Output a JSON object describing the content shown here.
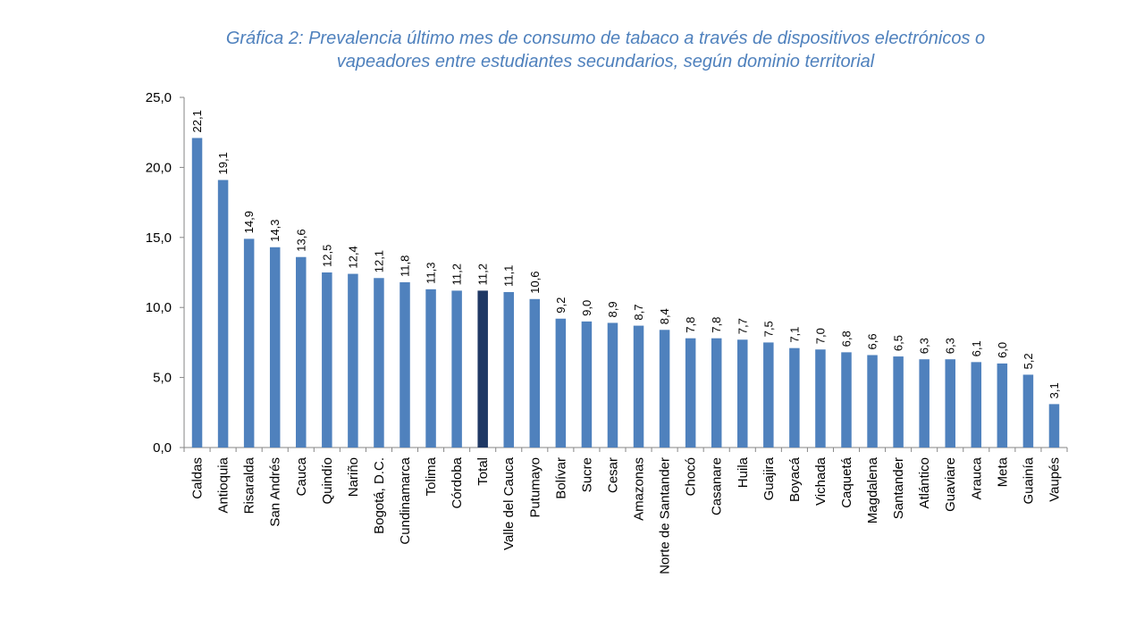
{
  "chart_data": {
    "type": "bar",
    "title_lines": [
      "Gráfica 2: Prevalencia último mes de consumo de tabaco a través de dispositivos electrónicos o",
      "vapeadores entre estudiantes secundarios, según dominio territorial"
    ],
    "categories": [
      "Caldas",
      "Antioquia",
      "Risaralda",
      "San Andrés",
      "Cauca",
      "Quindío",
      "Nariño",
      "Bogotá, D.C.",
      "Cundinamarca",
      "Tolima",
      "Córdoba",
      "Total",
      "Valle del Cauca",
      "Putumayo",
      "Bolívar",
      "Sucre",
      "Cesar",
      "Amazonas",
      "Norte de Santander",
      "Chocó",
      "Casanare",
      "Huila",
      "Guajira",
      "Boyacá",
      "Vichada",
      "Caquetá",
      "Magdalena",
      "Santander",
      "Atlántico",
      "Guaviare",
      "Arauca",
      "Meta",
      "Guainía",
      "Vaupés"
    ],
    "values": [
      22.1,
      19.1,
      14.9,
      14.3,
      13.6,
      12.5,
      12.4,
      12.1,
      11.8,
      11.3,
      11.2,
      11.2,
      11.1,
      10.6,
      9.2,
      9.0,
      8.9,
      8.7,
      8.4,
      7.8,
      7.8,
      7.7,
      7.5,
      7.1,
      7.0,
      6.8,
      6.6,
      6.5,
      6.3,
      6.3,
      6.1,
      6.0,
      5.2,
      3.1
    ],
    "value_labels": [
      "22,1",
      "19,1",
      "14,9",
      "14,3",
      "13,6",
      "12,5",
      "12,4",
      "12,1",
      "11,8",
      "11,3",
      "11,2",
      "11,2",
      "11,1",
      "10,6",
      "9,2",
      "9,0",
      "8,9",
      "8,7",
      "8,4",
      "7,8",
      "7,8",
      "7,7",
      "7,5",
      "7,1",
      "7,0",
      "6,8",
      "6,6",
      "6,5",
      "6,3",
      "6,3",
      "6,1",
      "6,0",
      "5,2",
      "3,1"
    ],
    "highlight_category": "Total",
    "ylim": [
      0,
      25
    ],
    "yticks": [
      0,
      5,
      10,
      15,
      20,
      25
    ],
    "ytick_labels": [
      "0,0",
      "5,0",
      "10,0",
      "15,0",
      "20,0",
      "25,0"
    ],
    "grid": false,
    "legend": "none",
    "colors": {
      "bar": "#4f81bd",
      "highlight": "#1f3864",
      "axis": "#868686",
      "title": "#4f81bd"
    }
  }
}
